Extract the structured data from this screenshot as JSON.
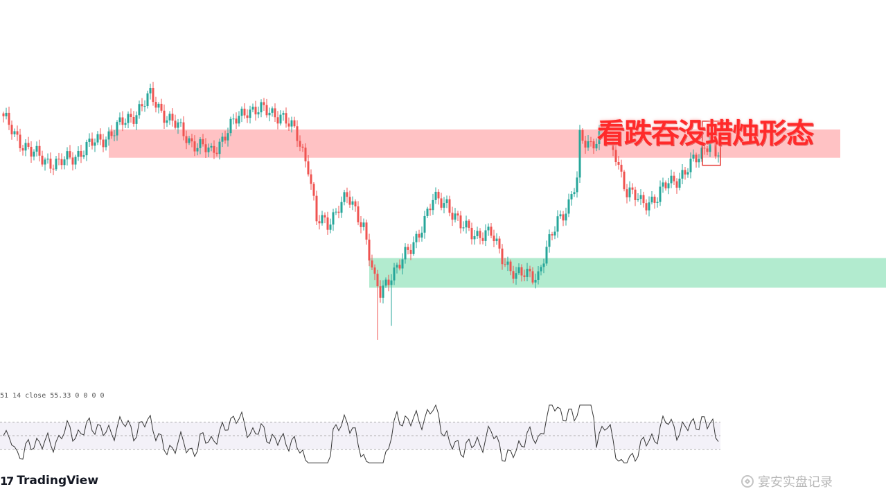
{
  "annotation": {
    "title": "看跌吞没蜡烛形态"
  },
  "rsi_legend": "51 14 close  55.33  0  0  0  0",
  "branding": {
    "logo_mark": "17",
    "logo_text": "TradingView",
    "watermark": "宴安实盘记录"
  },
  "colors": {
    "bull": "#26a69a",
    "bear": "#ef5350",
    "resistance_zone": "#ffc2c4",
    "support_zone": "#b2ebcf",
    "highlight_box": "#e53935",
    "rsi_line": "#333333",
    "rsi_band": "#f3f1f8"
  },
  "chart_data": [
    {
      "type": "candlestick",
      "ylim": [
        0,
        100
      ],
      "zones": [
        {
          "kind": "resistance",
          "from_index": 38,
          "to_index": 302,
          "low": 78.5,
          "high": 88.5
        },
        {
          "kind": "support",
          "from_index": 132,
          "to_index": 320,
          "low": 32.5,
          "high": 43.0
        }
      ],
      "highlight": {
        "from_index": 253,
        "to_index": 258
      },
      "candles": []
    },
    {
      "type": "line",
      "name": "RSI",
      "ylim": [
        0,
        100
      ],
      "levels": [
        70,
        50,
        30
      ],
      "values": []
    }
  ]
}
